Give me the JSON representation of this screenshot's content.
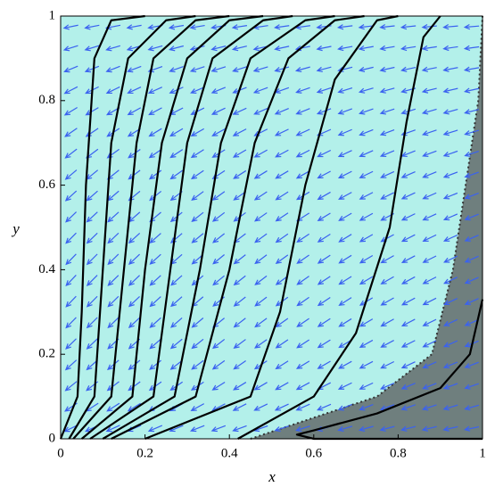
{
  "chart_data": {
    "type": "phase_portrait",
    "xlabel": "x",
    "ylabel": "y",
    "xlim": [
      0,
      1
    ],
    "ylim": [
      0,
      1
    ],
    "xticks": [
      0,
      0.2,
      0.4,
      0.6,
      0.8,
      1
    ],
    "yticks": [
      0,
      0.2,
      0.4,
      0.6,
      0.8,
      1
    ],
    "background_color": "#b3f0ea",
    "arrow_color": "#3a62f0",
    "region": {
      "color": "#6f7f7e",
      "x": [
        0.45,
        0.6,
        0.75,
        0.88,
        0.93,
        0.96,
        0.99,
        1,
        1
      ],
      "y": [
        0,
        0.05,
        0.1,
        0.2,
        0.4,
        0.6,
        0.8,
        1,
        0
      ]
    },
    "series": [
      {
        "color": "#000000",
        "x": [
          0.0,
          0.04,
          0.05,
          0.06,
          0.08,
          0.12,
          0.2
        ],
        "y": [
          0,
          0.1,
          0.3,
          0.6,
          0.9,
          0.99,
          1
        ]
      },
      {
        "color": "#000000",
        "x": [
          0.02,
          0.08,
          0.1,
          0.12,
          0.16,
          0.25,
          0.32
        ],
        "y": [
          0,
          0.1,
          0.4,
          0.7,
          0.9,
          0.99,
          1
        ]
      },
      {
        "color": "#000000",
        "x": [
          0.03,
          0.12,
          0.15,
          0.18,
          0.22,
          0.32,
          0.4
        ],
        "y": [
          0,
          0.1,
          0.4,
          0.7,
          0.9,
          0.99,
          1
        ]
      },
      {
        "color": "#000000",
        "x": [
          0.05,
          0.17,
          0.2,
          0.24,
          0.3,
          0.4,
          0.48
        ],
        "y": [
          0,
          0.1,
          0.4,
          0.7,
          0.9,
          0.99,
          1
        ]
      },
      {
        "color": "#000000",
        "x": [
          0.07,
          0.22,
          0.26,
          0.3,
          0.36,
          0.48,
          0.55
        ],
        "y": [
          0,
          0.1,
          0.4,
          0.7,
          0.9,
          0.99,
          1
        ]
      },
      {
        "color": "#000000",
        "x": [
          0.1,
          0.27,
          0.33,
          0.38,
          0.45,
          0.58,
          0.65
        ],
        "y": [
          0,
          0.1,
          0.4,
          0.7,
          0.9,
          0.99,
          1
        ]
      },
      {
        "color": "#000000",
        "x": [
          0.12,
          0.32,
          0.4,
          0.46,
          0.54,
          0.65,
          0.72
        ],
        "y": [
          0,
          0.1,
          0.4,
          0.7,
          0.9,
          0.99,
          1
        ]
      },
      {
        "color": "#000000",
        "x": [
          0.2,
          0.45,
          0.52,
          0.58,
          0.65,
          0.75,
          0.8
        ],
        "y": [
          0,
          0.1,
          0.3,
          0.6,
          0.85,
          0.99,
          1
        ]
      },
      {
        "color": "#000000",
        "x": [
          0.42,
          0.6,
          0.7,
          0.78,
          0.82,
          0.86,
          0.9
        ],
        "y": [
          0,
          0.1,
          0.25,
          0.5,
          0.75,
          0.95,
          1
        ]
      },
      {
        "color": "#000000",
        "x": [
          1,
          0.97,
          0.9,
          0.75,
          0.6,
          0.56,
          0.6,
          0.8,
          1
        ],
        "y": [
          0.33,
          0.2,
          0.12,
          0.06,
          0.02,
          0.01,
          0,
          0,
          0
        ]
      }
    ]
  }
}
